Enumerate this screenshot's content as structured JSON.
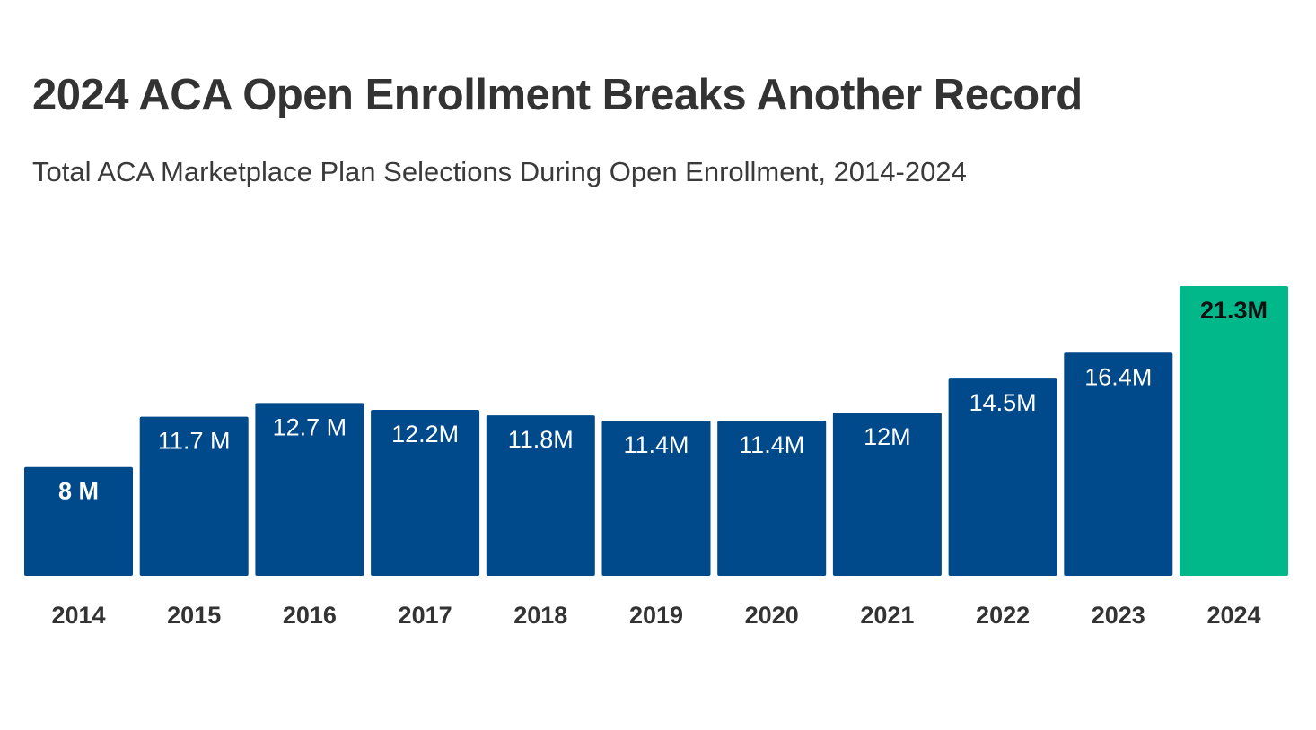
{
  "header": {
    "title": "2024 ACA Open Enrollment Breaks Another Record",
    "subtitle": "Total ACA Marketplace Plan Selections During Open Enrollment, 2014-2024"
  },
  "chart_data": {
    "type": "bar",
    "title": "2024 ACA Open Enrollment Breaks Another Record",
    "subtitle": "Total ACA Marketplace Plan Selections During Open Enrollment, 2014-2024",
    "xlabel": "",
    "ylabel": "",
    "categories": [
      "2014",
      "2015",
      "2016",
      "2017",
      "2018",
      "2019",
      "2020",
      "2021",
      "2022",
      "2023",
      "2024"
    ],
    "values": [
      8,
      11.7,
      12.7,
      12.2,
      11.8,
      11.4,
      11.4,
      12,
      14.5,
      16.4,
      21.3
    ],
    "data_labels": [
      "8 M",
      "11.7 M",
      "12.7 M",
      "12.2M",
      "11.8M",
      "11.4M",
      "11.4M",
      "12M",
      "14.5M",
      "16.4M",
      "21.3M"
    ],
    "unit": "M",
    "ylim": [
      0,
      21.3
    ],
    "grid": false,
    "colors": {
      "default": "#00498a",
      "highlight": "#00b88a",
      "label_default": "#ffffff",
      "label_highlight": "#111111",
      "tick": "#333333"
    },
    "highlight_index": 10
  }
}
